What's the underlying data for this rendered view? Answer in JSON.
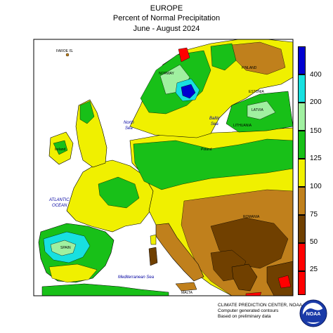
{
  "header": {
    "region": "EUROPE",
    "subtitle": "Percent of Normal Precipitation",
    "period": "June - August 2024"
  },
  "map_labels": {
    "faroe": "FAROE IS.",
    "norway": "NORWAY",
    "finland": "FINLAND",
    "estonia": "ESTONIA",
    "latvia": "LATVIA",
    "lithuania": "LITHUANIA",
    "north_sea": "North\nSea",
    "baltic_sea": "Baltic\nSea",
    "atlantic": "ATLANTIC\nOCEAN",
    "mediterranean": "Mediterranean Sea",
    "malta": "MALTA",
    "romania": "ROMANIA",
    "poland": "Poland",
    "ireland": "Ireland",
    "spain": "SPAIN"
  },
  "legend": {
    "labels": [
      "400",
      "200",
      "150",
      "125",
      "100",
      "75",
      "50",
      "25"
    ],
    "colors": [
      "#0000d0",
      "#18e0e0",
      "#a0f0a0",
      "#18c018",
      "#f0f000",
      "#c0801c",
      "#704000",
      "#ff0000"
    ]
  },
  "credits": {
    "line1": "CLIMATE PREDICTION CENTER, NOAA",
    "line2": "Computer generated contours",
    "line3": "Based on preliminary data"
  },
  "logo": {
    "text": "NOAA"
  },
  "colors": {
    "sea": "#ffffff",
    "wet_blue": "#0000d0",
    "cyan": "#18e0e0",
    "light_green": "#a0f0a0",
    "green": "#18c018",
    "yellow": "#f0f000",
    "brown_light": "#c0801c",
    "brown_dark": "#704000",
    "red": "#ff0000"
  }
}
